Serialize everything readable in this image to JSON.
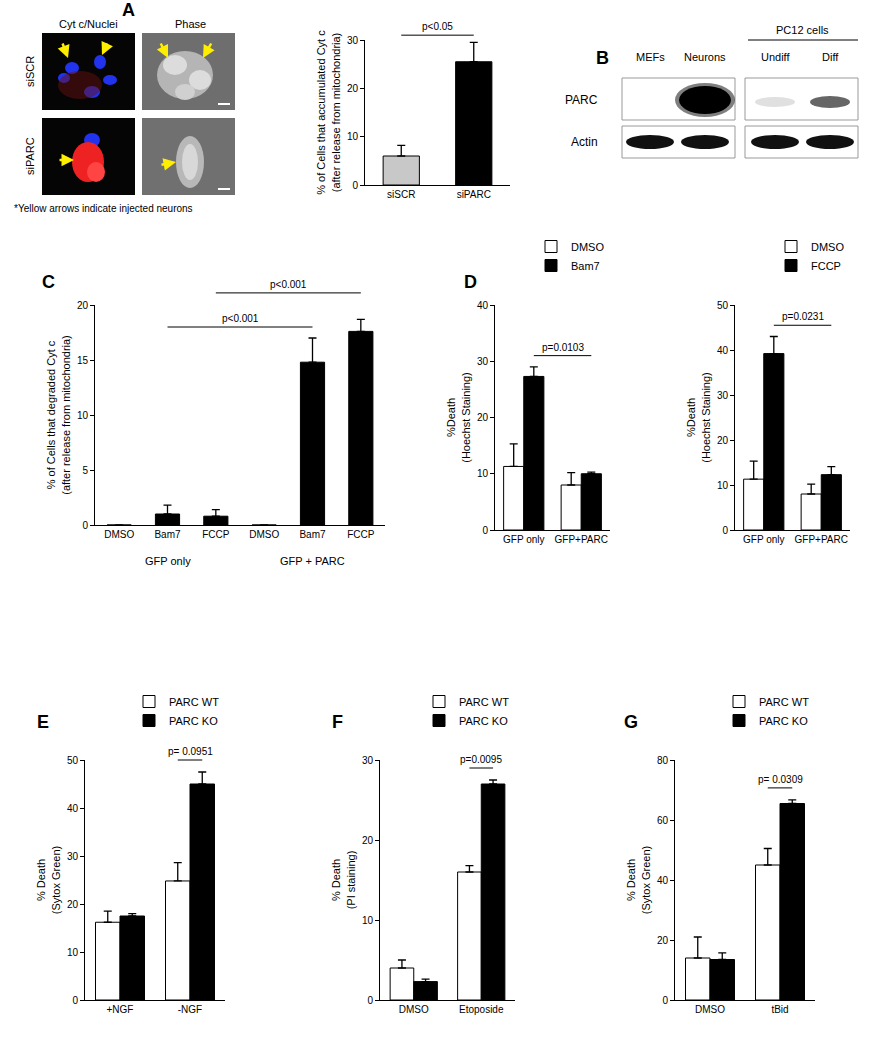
{
  "chart_data": [
    {
      "type": "bar",
      "ylabel": [
        "% of Cells that accumulated Cyt c",
        "(after release from mitochondria)"
      ],
      "categories": [
        "siSCR",
        "siPARC"
      ],
      "values": [
        6,
        25.5
      ],
      "errors": [
        2.2,
        4
      ],
      "colors": [
        "#c8c8c8",
        "#000000"
      ],
      "ylim": [
        0,
        30
      ],
      "yticks": [
        0,
        10,
        20,
        30
      ],
      "annotations": [
        "p<0.05"
      ]
    },
    {
      "panel": "C",
      "type": "bar",
      "ylabel": [
        "% of Cells that degraded Cyt c",
        "(after release from mitochondria)"
      ],
      "categories": [
        "DMSO",
        "Bam7",
        "FCCP",
        "DMSO",
        "Bam7",
        "FCCP"
      ],
      "groups": [
        "GFP only",
        "GFP + PARC"
      ],
      "values": [
        0,
        1,
        0.8,
        0,
        14.8,
        17.6
      ],
      "errors": [
        0,
        0.8,
        0.6,
        0,
        2.2,
        1.1
      ],
      "color": "#000000",
      "ylim": [
        0,
        20
      ],
      "yticks": [
        0,
        5,
        10,
        15,
        20
      ],
      "annotations": [
        "p<0.001",
        "p<0.001"
      ]
    },
    {
      "panel": "D",
      "type": "bar",
      "ylabel": [
        "%Death",
        "(Hoechst Staining)"
      ],
      "categories": [
        "GFP only",
        "GFP+PARC"
      ],
      "series": [
        {
          "name": "DMSO",
          "color": "#ffffff",
          "values": [
            11.3,
            8
          ],
          "errors": [
            4,
            2.2
          ]
        },
        {
          "name": "Bam7",
          "color": "#000000",
          "values": [
            27.3,
            10
          ],
          "errors": [
            1.7,
            0.3
          ]
        }
      ],
      "ylim": [
        0,
        40
      ],
      "yticks": [
        0,
        10,
        20,
        30,
        40
      ],
      "legend": "top right",
      "annotations": [
        "p=0.0103"
      ]
    },
    {
      "type": "bar",
      "ylabel": [
        "%Death",
        "(Hoechst Staining)"
      ],
      "categories": [
        "GFP only",
        "GFP+PARC"
      ],
      "series": [
        {
          "name": "DMSO",
          "color": "#ffffff",
          "values": [
            11.3,
            8
          ],
          "errors": [
            4,
            2.2
          ]
        },
        {
          "name": "FCCP",
          "color": "#000000",
          "values": [
            39.2,
            12.3
          ],
          "errors": [
            3.8,
            1.8
          ]
        }
      ],
      "ylim": [
        0,
        50
      ],
      "yticks": [
        0,
        10,
        20,
        30,
        40,
        50
      ],
      "legend": "top right",
      "annotations": [
        "p=0.0231"
      ]
    },
    {
      "panel": "E",
      "type": "bar",
      "ylabel": [
        "% Death",
        "(Sytox Green)"
      ],
      "categories": [
        "+NGF",
        "-NGF"
      ],
      "series": [
        {
          "name": "PARC WT",
          "color": "#ffffff",
          "values": [
            16.2,
            24.8
          ],
          "errors": [
            2.3,
            3.8
          ]
        },
        {
          "name": "PARC KO",
          "color": "#000000",
          "values": [
            17.5,
            45
          ],
          "errors": [
            0.5,
            2.5
          ]
        }
      ],
      "ylim": [
        0,
        50
      ],
      "yticks": [
        0,
        10,
        20,
        30,
        40,
        50
      ],
      "legend": "top right",
      "annotations": [
        "p= 0.0951"
      ]
    },
    {
      "panel": "F",
      "type": "bar",
      "ylabel": [
        "% Death",
        "(PI staining)"
      ],
      "categories": [
        "DMSO",
        "Etoposide"
      ],
      "series": [
        {
          "name": "PARC WT",
          "color": "#ffffff",
          "values": [
            4,
            16
          ],
          "errors": [
            1,
            0.8
          ]
        },
        {
          "name": "PARC KO",
          "color": "#000000",
          "values": [
            2.3,
            27
          ],
          "errors": [
            0.3,
            0.5
          ]
        }
      ],
      "ylim": [
        0,
        30
      ],
      "yticks": [
        0,
        10,
        20,
        30
      ],
      "legend": "top right",
      "annotations": [
        "p=0.0095"
      ]
    },
    {
      "panel": "G",
      "type": "bar",
      "ylabel": [
        "% Death",
        "(Sytox Green)"
      ],
      "categories": [
        "DMSO",
        "tBid"
      ],
      "series": [
        {
          "name": "PARC WT",
          "color": "#ffffff",
          "values": [
            14,
            45
          ],
          "errors": [
            7,
            5.5
          ]
        },
        {
          "name": "PARC KO",
          "color": "#000000",
          "values": [
            13.5,
            65.5
          ],
          "errors": [
            2.2,
            1.2
          ]
        }
      ],
      "ylim": [
        0,
        80
      ],
      "yticks": [
        0,
        20,
        40,
        60,
        80
      ],
      "legend": "top right",
      "annotations": [
        "p= 0.0309"
      ]
    }
  ],
  "micrographs": {
    "panel": "A",
    "columns": [
      "Cyt c/Nuclei",
      "Phase"
    ],
    "rows": [
      "siSCR",
      "siPARC"
    ],
    "note": "*Yellow arrows indicate injected neurons"
  },
  "blot": {
    "panel": "B",
    "lanes": [
      "MEFs",
      "Neurons",
      "Undiff",
      "Diff"
    ],
    "lane_group": "PC12 cells",
    "rows": [
      "PARC",
      "Actin"
    ]
  }
}
